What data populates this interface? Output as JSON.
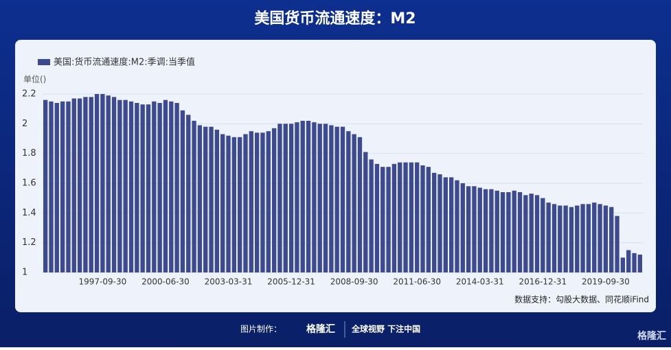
{
  "chart_data": {
    "type": "bar",
    "title": "美国货币流通速度：M2",
    "y_label": "单位()",
    "source": "数据支持：勾股大数据、同花顺iFind",
    "legend": "top-left",
    "grid": true,
    "ylim": [
      1,
      2.2
    ],
    "yticks": [
      1,
      1.2,
      1.4,
      1.6,
      1.8,
      2,
      2.2
    ],
    "categories": [
      null,
      null,
      null,
      null,
      null,
      null,
      null,
      null,
      null,
      null,
      "1997-09-30",
      null,
      null,
      null,
      null,
      null,
      null,
      null,
      null,
      null,
      null,
      "2000-06-30",
      null,
      null,
      null,
      null,
      null,
      null,
      null,
      null,
      null,
      null,
      "2003-03-31",
      null,
      null,
      null,
      null,
      null,
      null,
      null,
      null,
      null,
      null,
      "2005-12-31",
      null,
      null,
      null,
      null,
      null,
      null,
      null,
      null,
      null,
      null,
      "2008-09-30",
      null,
      null,
      null,
      null,
      null,
      null,
      null,
      null,
      null,
      null,
      "2011-06-30",
      null,
      null,
      null,
      null,
      null,
      null,
      null,
      null,
      null,
      null,
      "2014-03-31",
      null,
      null,
      null,
      null,
      null,
      null,
      null,
      null,
      null,
      null,
      "2016-12-31",
      null,
      null,
      null,
      null,
      null,
      null,
      null,
      null,
      null,
      null,
      "2019-09-30",
      null,
      null,
      null,
      null,
      null,
      null
    ],
    "series": [
      {
        "name": "美国:货币流通速度:M2:季调:当季值",
        "color": "#3d4a8f",
        "values": [
          2.16,
          2.15,
          2.14,
          2.15,
          2.15,
          2.17,
          2.17,
          2.18,
          2.18,
          2.2,
          2.2,
          2.19,
          2.18,
          2.16,
          2.16,
          2.15,
          2.14,
          2.13,
          2.13,
          2.15,
          2.14,
          2.16,
          2.15,
          2.14,
          2.09,
          2.06,
          2.02,
          1.99,
          1.98,
          1.98,
          1.96,
          1.93,
          1.92,
          1.91,
          1.91,
          1.93,
          1.95,
          1.94,
          1.94,
          1.95,
          1.97,
          2.0,
          2.0,
          2.0,
          2.01,
          2.02,
          2.02,
          2.01,
          2.0,
          2.0,
          1.99,
          1.98,
          1.98,
          1.95,
          1.93,
          1.91,
          1.81,
          1.76,
          1.73,
          1.71,
          1.71,
          1.73,
          1.74,
          1.74,
          1.74,
          1.74,
          1.72,
          1.71,
          1.67,
          1.66,
          1.64,
          1.64,
          1.62,
          1.6,
          1.58,
          1.58,
          1.57,
          1.56,
          1.56,
          1.55,
          1.54,
          1.54,
          1.55,
          1.54,
          1.52,
          1.53,
          1.52,
          1.5,
          1.47,
          1.46,
          1.45,
          1.45,
          1.44,
          1.45,
          1.46,
          1.46,
          1.47,
          1.46,
          1.45,
          1.44,
          1.38,
          1.1,
          1.15,
          1.13,
          1.12
        ]
      }
    ]
  },
  "footer": {
    "made_by": "图片制作：",
    "brand": "格隆汇",
    "slogan": "全球视野 下注中国",
    "corner_brand": "格隆汇"
  }
}
